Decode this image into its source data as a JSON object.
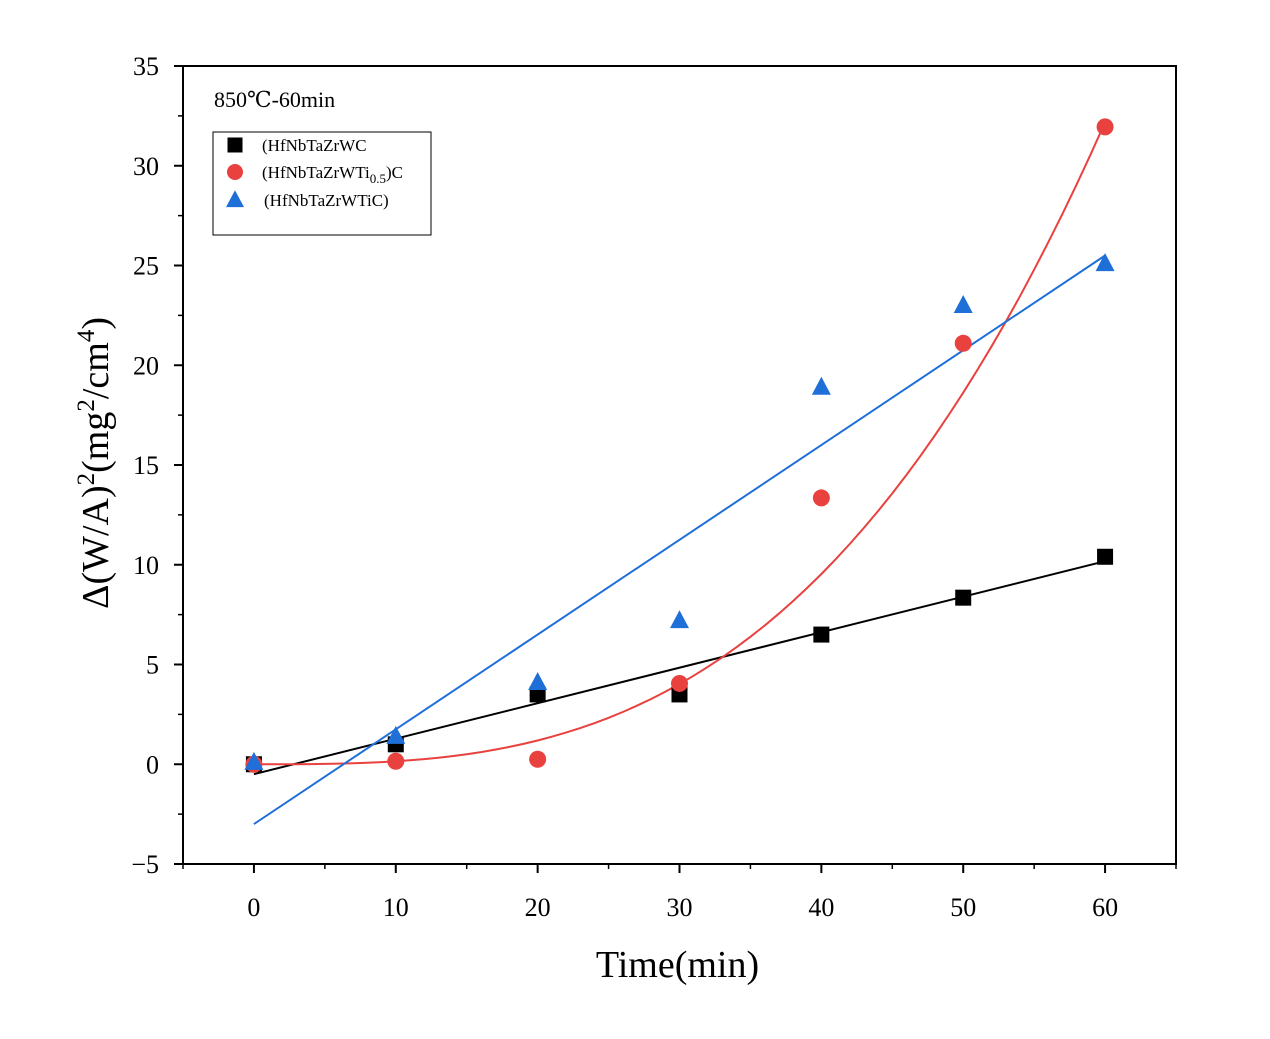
{
  "chart_data": {
    "type": "scatter",
    "annotation": "850℃-60min",
    "xlabel": "Time(min)",
    "ylabel": {
      "prefix": "Δ(W/A)",
      "sup1": "2",
      "mid": "(mg",
      "sup2": "2",
      "mid2": "/cm",
      "sup3": "4",
      "suffix": ")"
    },
    "xlim": [
      -5,
      65
    ],
    "ylim": [
      -5,
      35
    ],
    "xticks": [
      0,
      10,
      20,
      30,
      40,
      50,
      60
    ],
    "yticks": [
      -5,
      0,
      5,
      10,
      15,
      20,
      25,
      30,
      35
    ],
    "ytick_labels": [
      "−5",
      "0",
      "5",
      "10",
      "15",
      "20",
      "25",
      "30",
      "35"
    ],
    "legend_position": "top-left",
    "series": [
      {
        "name": "(HfNbTaZrWC",
        "marker": "square",
        "color": "#000000",
        "x": [
          0,
          10,
          20,
          30,
          40,
          50,
          60
        ],
        "y": [
          0.0,
          1.0,
          3.5,
          3.5,
          6.5,
          8.35,
          10.4
        ],
        "fit": {
          "kind": "linear",
          "slope": 0.178,
          "intercept": -0.5,
          "x_range": [
            0,
            60
          ]
        }
      },
      {
        "name": "(HfNbTaZrWTi",
        "name_sub": "0.5",
        "name_tail": ")C",
        "marker": "circle",
        "color": "#e8413e",
        "x": [
          0,
          10,
          20,
          30,
          40,
          50,
          60
        ],
        "y": [
          0.0,
          0.15,
          0.25,
          4.05,
          13.35,
          21.1,
          31.95
        ],
        "fit": {
          "kind": "cubic",
          "coef": 0.000149,
          "x_range": [
            0,
            60
          ]
        }
      },
      {
        "name": "(HfNbTaZrWTiC)",
        "marker": "triangle",
        "color": "#1f6fd8",
        "x": [
          0,
          10,
          20,
          30,
          40,
          50,
          60
        ],
        "y": [
          0.1,
          1.4,
          4.1,
          7.2,
          18.9,
          23.0,
          25.1
        ],
        "fit": {
          "kind": "linear",
          "slope": 0.475,
          "intercept": -3.0,
          "x_range": [
            0,
            60
          ]
        }
      }
    ]
  }
}
